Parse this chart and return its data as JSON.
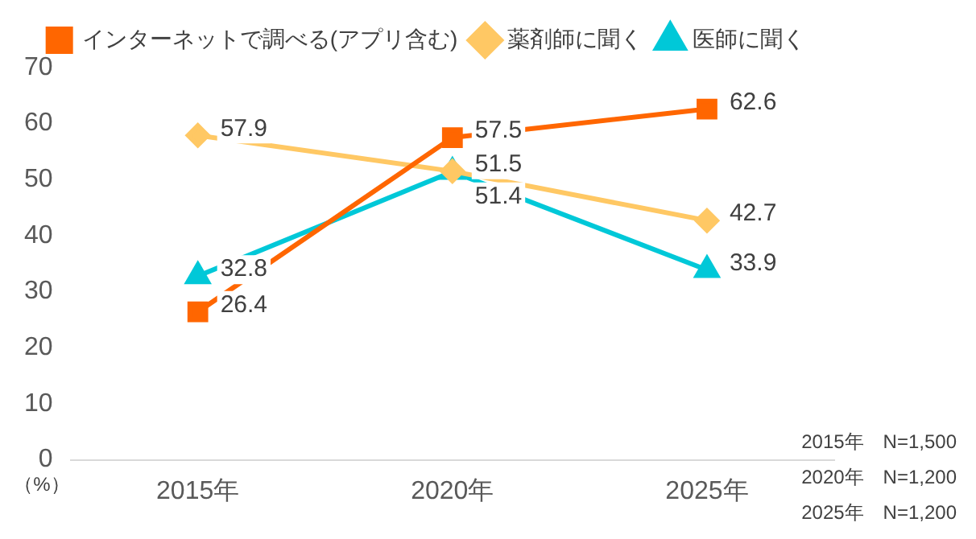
{
  "chart_data": {
    "type": "line",
    "categories": [
      "2015年",
      "2020年",
      "2025年"
    ],
    "series": [
      {
        "name": "インターネットで調べる(アプリ含む)",
        "color": "#ff6600",
        "marker": "square",
        "values": [
          26.4,
          57.5,
          62.6
        ]
      },
      {
        "name": "薬剤師に聞く",
        "color": "#ffc864",
        "marker": "diamond",
        "values": [
          57.9,
          51.5,
          42.7
        ]
      },
      {
        "name": "医師に聞く",
        "color": "#00c8d8",
        "marker": "triangle",
        "values": [
          32.8,
          51.4,
          33.9
        ]
      }
    ],
    "ylim": [
      0,
      70
    ],
    "yticks": [
      0,
      10,
      20,
      30,
      40,
      50,
      60,
      70
    ],
    "ylabel": "（%）",
    "grid": false,
    "legend": "top",
    "data_labels": true,
    "annotations": [
      "2015年　N=1,500",
      "2020年　N=1,200",
      "2025年　N=1,200"
    ]
  }
}
